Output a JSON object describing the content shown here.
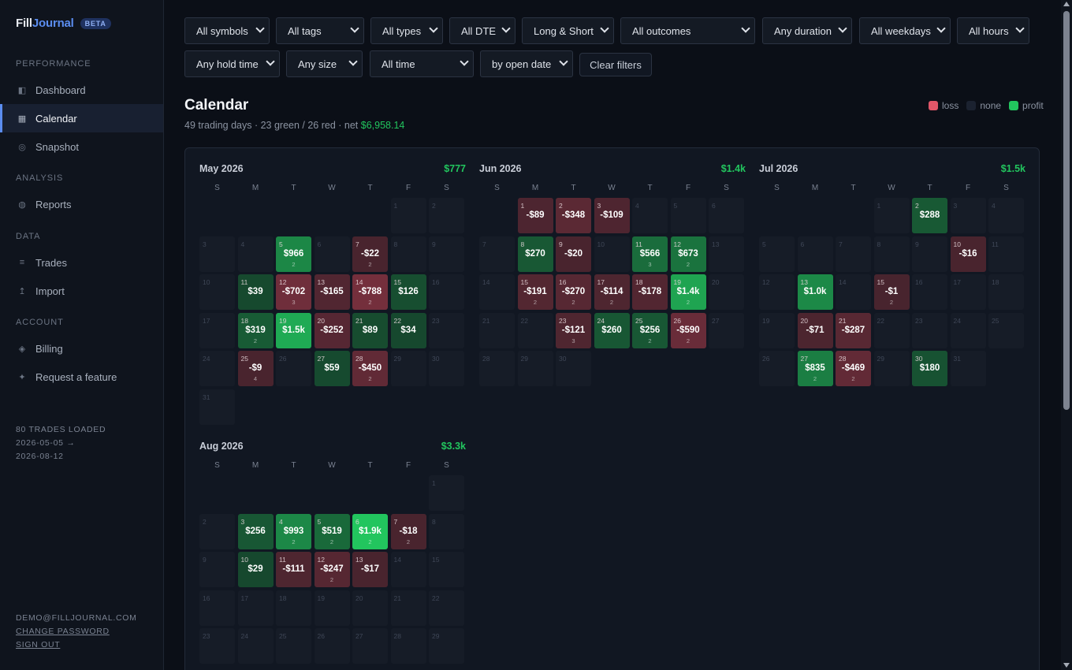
{
  "brand": {
    "name_a": "Fill",
    "name_b": "Journal",
    "badge": "BETA"
  },
  "sidebar": {
    "sections": [
      {
        "label": "PERFORMANCE",
        "items": [
          {
            "label": "Dashboard",
            "icon": "dashboard-icon",
            "glyph": "◧",
            "active": false
          },
          {
            "label": "Calendar",
            "icon": "calendar-icon",
            "glyph": "▦",
            "active": true
          },
          {
            "label": "Snapshot",
            "icon": "snapshot-icon",
            "glyph": "◎",
            "active": false
          }
        ]
      },
      {
        "label": "ANALYSIS",
        "items": [
          {
            "label": "Reports",
            "icon": "reports-icon",
            "glyph": "◍",
            "active": false
          }
        ]
      },
      {
        "label": "DATA",
        "items": [
          {
            "label": "Trades",
            "icon": "trades-icon",
            "glyph": "≡",
            "active": false
          },
          {
            "label": "Import",
            "icon": "import-icon",
            "glyph": "↥",
            "active": false
          }
        ]
      },
      {
        "label": "ACCOUNT",
        "items": [
          {
            "label": "Billing",
            "icon": "billing-icon",
            "glyph": "◈",
            "active": false
          },
          {
            "label": "Request a feature",
            "icon": "sparkle-icon",
            "glyph": "✦",
            "active": false
          }
        ]
      }
    ],
    "trades_loaded": "80 TRADES LOADED",
    "range_start": "2026-05-05 →",
    "range_end": "2026-08-12",
    "user_email": "DEMO@FILLJOURNAL.COM",
    "change_password": "CHANGE PASSWORD",
    "sign_out": "SIGN OUT"
  },
  "filters": {
    "row1": [
      "All symbols",
      "All tags",
      "All types",
      "All DTE",
      "Long & Short",
      "All outcomes",
      "Any duration",
      "All weekdays",
      "All hours"
    ],
    "row2": [
      "Any hold time",
      "Any size",
      "All time",
      "by open date"
    ],
    "clear_label": "Clear filters"
  },
  "page": {
    "title": "Calendar",
    "summary": "49 trading days · 23 green / 26 red · net ",
    "net": "$6,958.14"
  },
  "legend": {
    "loss": "loss",
    "none": "none",
    "profit": "profit"
  },
  "colors": {
    "accent": "#5b8def",
    "profit": "#22c55e",
    "loss": "#ef5d74",
    "none": "#1b2230"
  },
  "weekdays": [
    "S",
    "M",
    "T",
    "W",
    "T",
    "F",
    "S"
  ],
  "months": [
    {
      "name": "May 2026",
      "total": "$777",
      "start_dow": 5,
      "days": 31,
      "trades": {
        "5": {
          "pnl": "$966",
          "count": "2",
          "v": 966
        },
        "7": {
          "pnl": "-$22",
          "count": "2",
          "v": -22
        },
        "11": {
          "pnl": "$39",
          "count": "",
          "v": 39
        },
        "12": {
          "pnl": "-$702",
          "count": "3",
          "v": -702
        },
        "13": {
          "pnl": "-$165",
          "count": "",
          "v": -165
        },
        "14": {
          "pnl": "-$788",
          "count": "2",
          "v": -788
        },
        "15": {
          "pnl": "$126",
          "count": "",
          "v": 126
        },
        "18": {
          "pnl": "$319",
          "count": "2",
          "v": 319
        },
        "19": {
          "pnl": "$1.5k",
          "count": "",
          "v": 1500
        },
        "20": {
          "pnl": "-$252",
          "count": "",
          "v": -252
        },
        "21": {
          "pnl": "$89",
          "count": "",
          "v": 89
        },
        "22": {
          "pnl": "$34",
          "count": "",
          "v": 34
        },
        "25": {
          "pnl": "-$9",
          "count": "4",
          "v": -9
        },
        "27": {
          "pnl": "$59",
          "count": "",
          "v": 59
        },
        "28": {
          "pnl": "-$450",
          "count": "2",
          "v": -450
        }
      }
    },
    {
      "name": "Jun 2026",
      "total": "$1.4k",
      "start_dow": 1,
      "days": 30,
      "trades": {
        "1": {
          "pnl": "-$89",
          "count": "",
          "v": -89
        },
        "2": {
          "pnl": "-$348",
          "count": "",
          "v": -348
        },
        "3": {
          "pnl": "-$109",
          "count": "",
          "v": -109
        },
        "8": {
          "pnl": "$270",
          "count": "",
          "v": 270
        },
        "9": {
          "pnl": "-$20",
          "count": "",
          "v": -20
        },
        "11": {
          "pnl": "$566",
          "count": "3",
          "v": 566
        },
        "12": {
          "pnl": "$673",
          "count": "2",
          "v": 673
        },
        "15": {
          "pnl": "-$191",
          "count": "2",
          "v": -191
        },
        "16": {
          "pnl": "-$270",
          "count": "2",
          "v": -270
        },
        "17": {
          "pnl": "-$114",
          "count": "2",
          "v": -114
        },
        "18": {
          "pnl": "-$178",
          "count": "",
          "v": -178
        },
        "19": {
          "pnl": "$1.4k",
          "count": "2",
          "v": 1400
        },
        "23": {
          "pnl": "-$121",
          "count": "3",
          "v": -121
        },
        "24": {
          "pnl": "$260",
          "count": "",
          "v": 260
        },
        "25": {
          "pnl": "$256",
          "count": "2",
          "v": 256
        },
        "26": {
          "pnl": "-$590",
          "count": "2",
          "v": -590
        }
      }
    },
    {
      "name": "Jul 2026",
      "total": "$1.5k",
      "start_dow": 3,
      "days": 31,
      "trades": {
        "2": {
          "pnl": "$288",
          "count": "",
          "v": 288
        },
        "10": {
          "pnl": "-$16",
          "count": "",
          "v": -16
        },
        "13": {
          "pnl": "$1.0k",
          "count": "",
          "v": 1000
        },
        "15": {
          "pnl": "-$1",
          "count": "2",
          "v": -1
        },
        "20": {
          "pnl": "-$71",
          "count": "",
          "v": -71
        },
        "21": {
          "pnl": "-$287",
          "count": "",
          "v": -287
        },
        "27": {
          "pnl": "$835",
          "count": "2",
          "v": 835
        },
        "28": {
          "pnl": "-$469",
          "count": "2",
          "v": -469
        },
        "30": {
          "pnl": "$180",
          "count": "",
          "v": 180
        }
      }
    },
    {
      "name": "Aug 2026",
      "total": "$3.3k",
      "start_dow": 6,
      "days": 29,
      "trades": {
        "3": {
          "pnl": "$256",
          "count": "",
          "v": 256
        },
        "4": {
          "pnl": "$993",
          "count": "2",
          "v": 993
        },
        "5": {
          "pnl": "$519",
          "count": "2",
          "v": 519
        },
        "6": {
          "pnl": "$1.9k",
          "count": "2",
          "v": 1900
        },
        "7": {
          "pnl": "-$18",
          "count": "2",
          "v": -18
        },
        "10": {
          "pnl": "$29",
          "count": "",
          "v": 29
        },
        "11": {
          "pnl": "-$111",
          "count": "",
          "v": -111
        },
        "12": {
          "pnl": "-$247",
          "count": "2",
          "v": -247
        },
        "13": {
          "pnl": "-$17",
          "count": "",
          "v": -17
        }
      }
    }
  ]
}
